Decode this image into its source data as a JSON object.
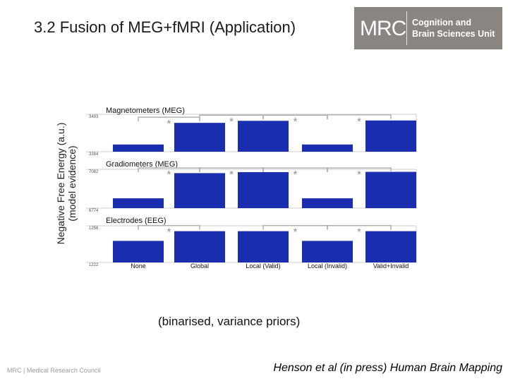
{
  "slide": {
    "title": "3.2 Fusion of MEG+fMRI (Application)",
    "caption": "(binarised, variance priors)",
    "citation": "Henson et al (in press) Human Brain Mapping",
    "footer_logo_text": "MRC | Medical Research Council"
  },
  "logo": {
    "mrc": "MRC",
    "line1": "Cognition and",
    "line2": "Brain Sciences Unit"
  },
  "axis": {
    "ylabel_line1": "Negative Free Energy (a.u.)",
    "ylabel_line2": "(model evidence)"
  },
  "colors": {
    "bar": "#1a2fb0",
    "bracket": "#b0b0b0",
    "star": "#909090",
    "logo_bg": "#8a8580"
  },
  "chart_data": {
    "type": "bar",
    "categories": [
      "None",
      "Global",
      "Local (Valid)",
      "Local (Invalid)",
      "Valid+Invalid"
    ],
    "panels": [
      {
        "title": "Magnetometers (MEG)",
        "ylim": [
          3384,
          3493
        ],
        "ytick_labels": [
          "3493",
          "3384"
        ],
        "values": [
          3405,
          3468,
          3474,
          3405,
          3475
        ],
        "significance": [
          {
            "from": 0,
            "to": 1,
            "label": "*"
          },
          {
            "from": 1,
            "to": 2,
            "label": "*"
          },
          {
            "from": 2,
            "to": 3,
            "label": "*"
          },
          {
            "from": 3,
            "to": 4,
            "label": "*"
          }
        ]
      },
      {
        "title": "Gradiometers (MEG)",
        "ylim": [
          6774,
          7082
        ],
        "ytick_labels": [
          "7082",
          "6774"
        ],
        "values": [
          6852,
          7052,
          7060,
          6852,
          7062
        ],
        "significance": [
          {
            "from": 0,
            "to": 1,
            "label": "*"
          },
          {
            "from": 1,
            "to": 2,
            "label": "*"
          },
          {
            "from": 2,
            "to": 3,
            "label": "*"
          },
          {
            "from": 3,
            "to": 4,
            "label": "*"
          }
        ]
      },
      {
        "title": "Electrodes (EEG)",
        "ylim": [
          1222,
          1256
        ],
        "ytick_labels": [
          "1256",
          "1222"
        ],
        "values": [
          1242,
          1251,
          1251,
          1242,
          1251
        ],
        "significance": [
          {
            "from": 0,
            "to": 1,
            "label": "*"
          },
          {
            "from": 2,
            "to": 3,
            "label": "*"
          },
          {
            "from": 3,
            "to": 4,
            "label": "*"
          }
        ]
      }
    ]
  }
}
